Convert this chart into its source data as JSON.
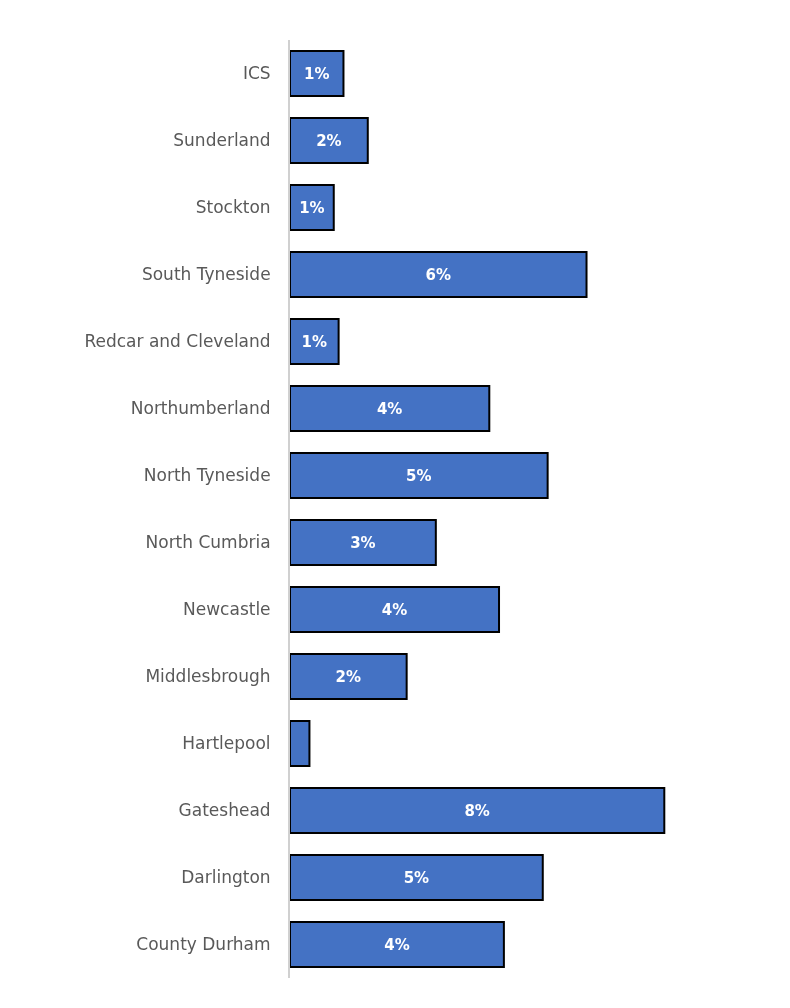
{
  "chart_data": {
    "type": "bar",
    "orientation": "horizontal",
    "categories": [
      "ICS",
      "Sunderland",
      "Stockton",
      "South Tyneside",
      "Redcar and Cleveland",
      "Northumberland",
      "North Tyneside",
      "North Cumbria",
      "Newcastle",
      "Middlesbrough",
      "Hartlepool",
      "Gateshead",
      "Darlington",
      "County Durham"
    ],
    "values": [
      1.1,
      1.6,
      0.9,
      6.1,
      1.0,
      4.1,
      5.3,
      3.0,
      4.3,
      2.4,
      0.4,
      7.7,
      5.2,
      4.4
    ],
    "value_labels": [
      "1%",
      "2%",
      "1%",
      "6%",
      "1%",
      "4%",
      "5%",
      "3%",
      "4%",
      "2%",
      null,
      "8%",
      "5%",
      "4%"
    ],
    "color": "#4472c4",
    "tick_labels": "y",
    "grid": false,
    "legend": false
  }
}
